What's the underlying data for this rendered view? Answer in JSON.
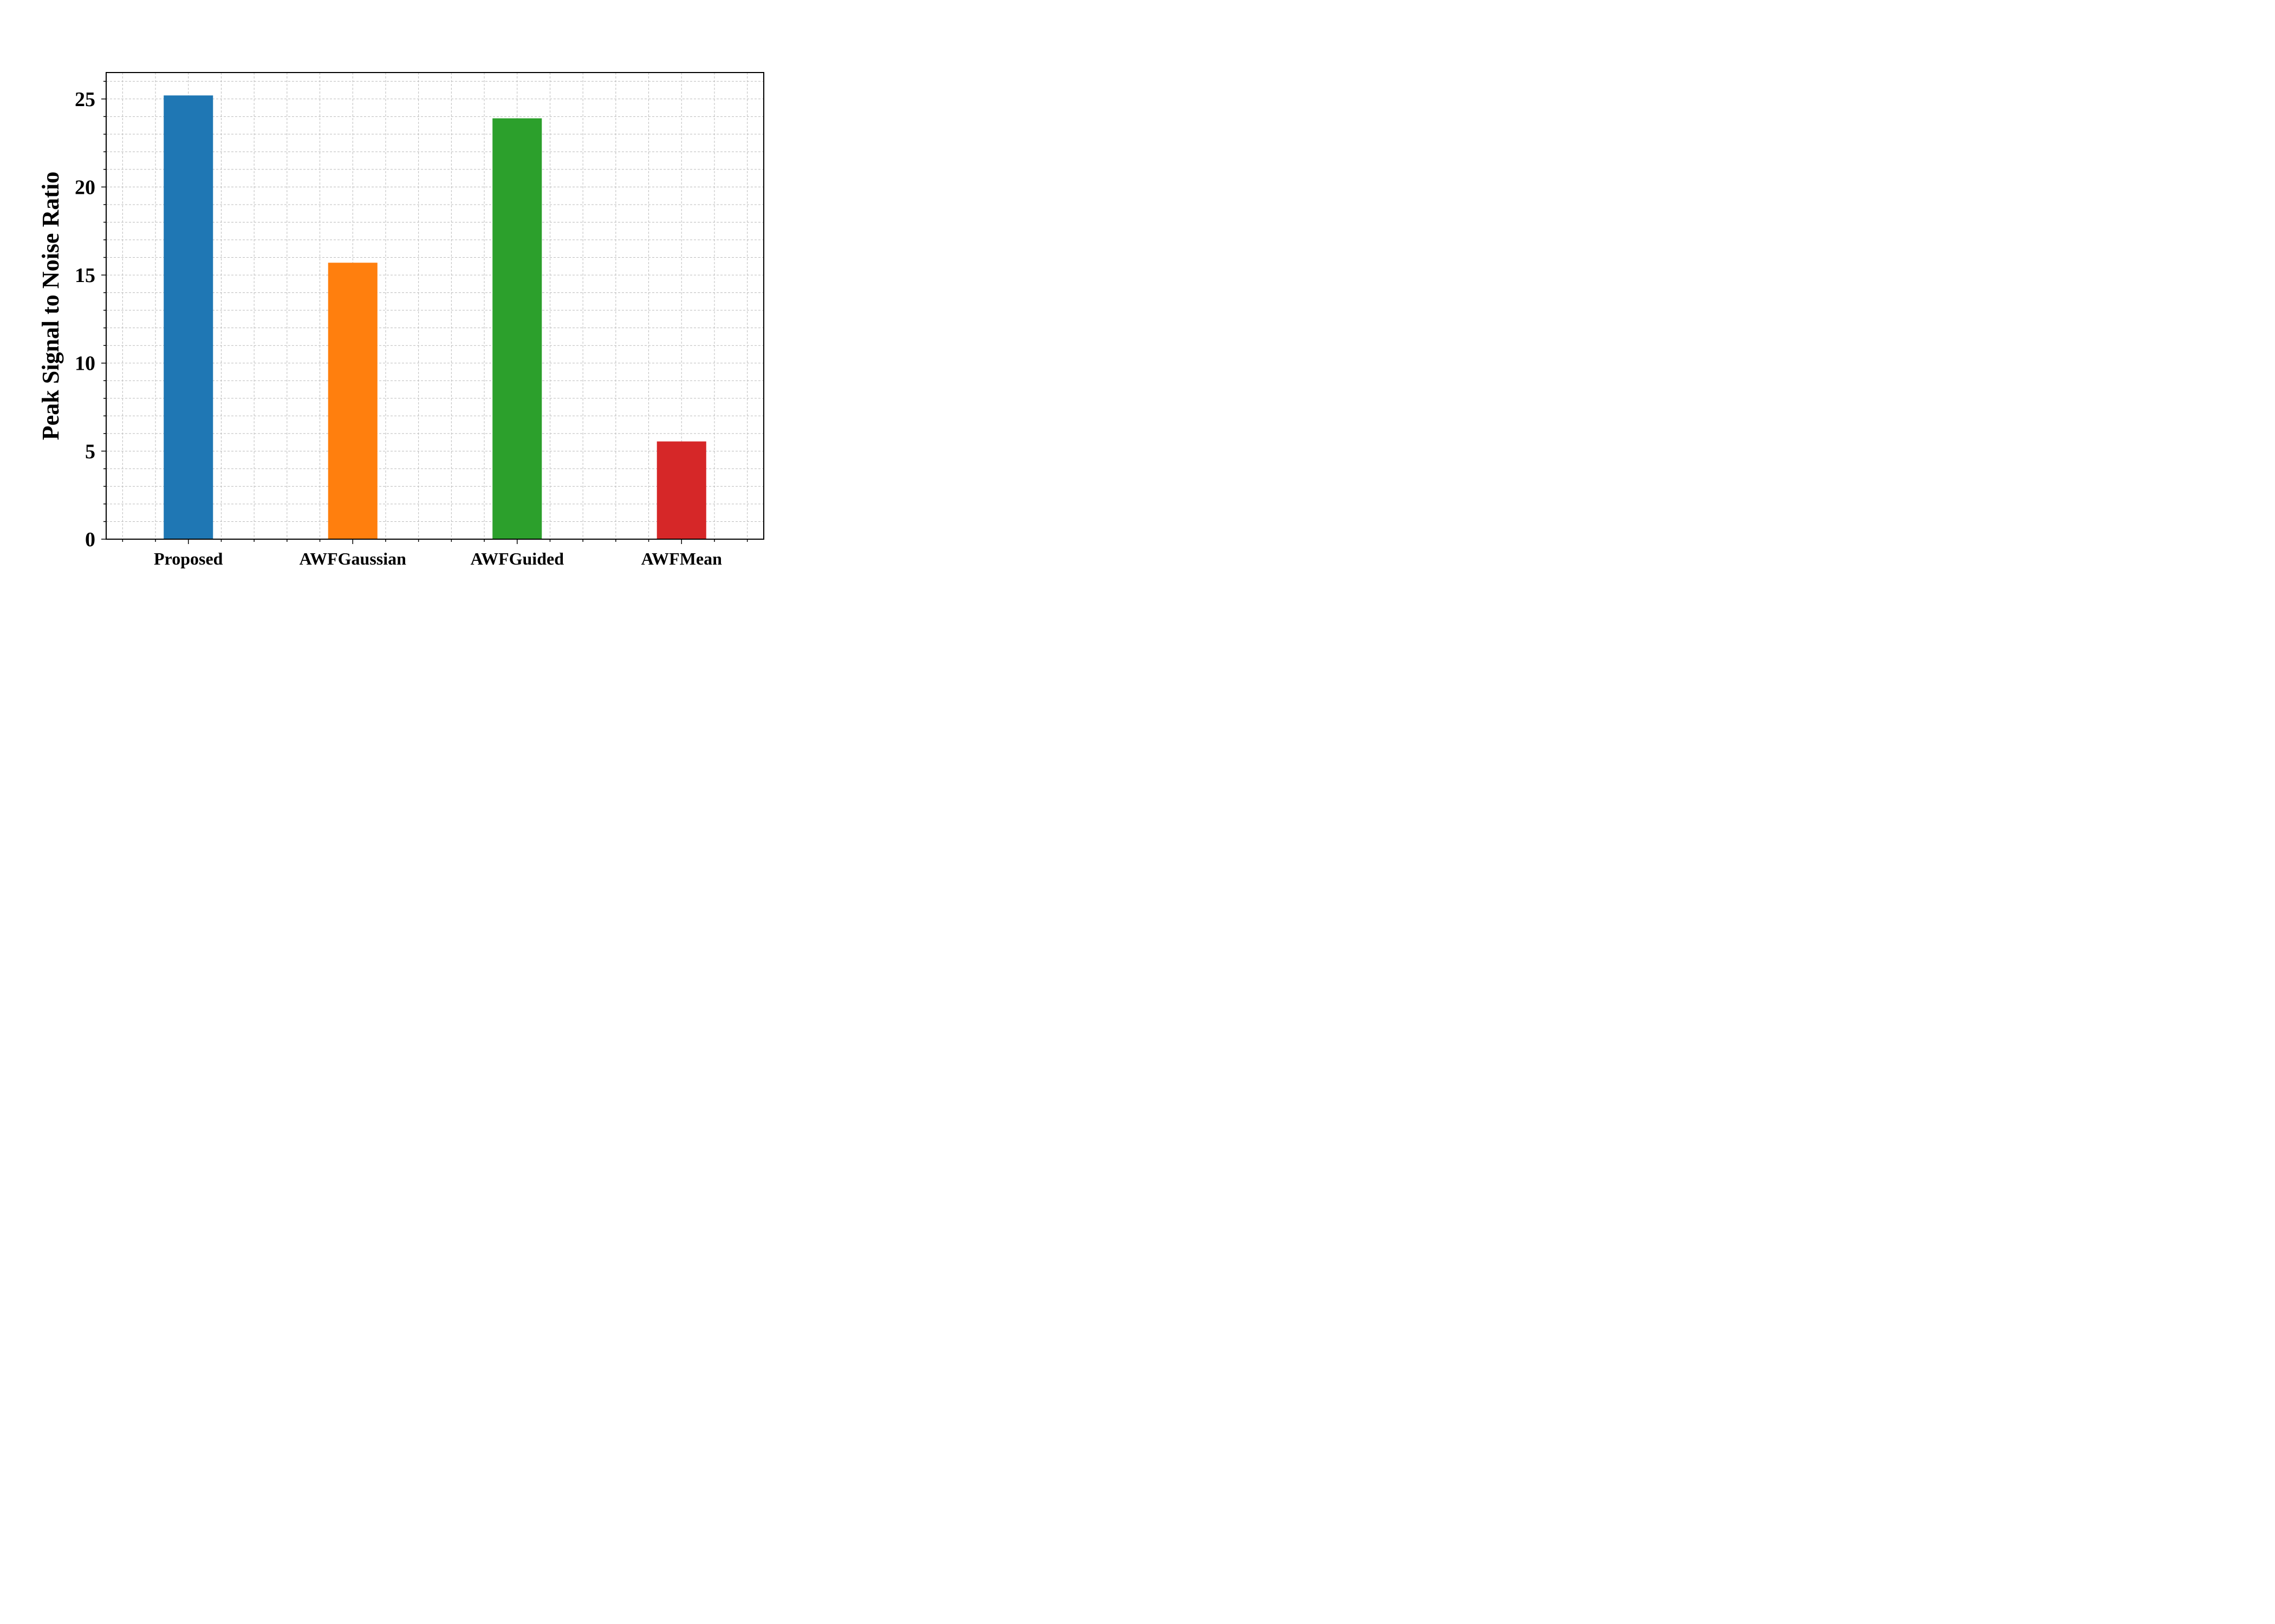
{
  "chart_data": {
    "type": "bar",
    "categories": [
      "Proposed",
      "AWFGaussian",
      "AWFGuided",
      "AWFMean"
    ],
    "values": [
      25.2,
      15.7,
      23.9,
      5.55
    ],
    "colors": [
      "#1f77b4",
      "#ff7f0e",
      "#2ca02c",
      "#d62728"
    ],
    "title": "",
    "xlabel": "",
    "ylabel": "Peak Signal to Noise Ratio",
    "ylim": [
      0,
      26.5
    ],
    "yticks": [
      "0",
      "5",
      "10",
      "15",
      "20",
      "25"
    ],
    "grid": true
  }
}
